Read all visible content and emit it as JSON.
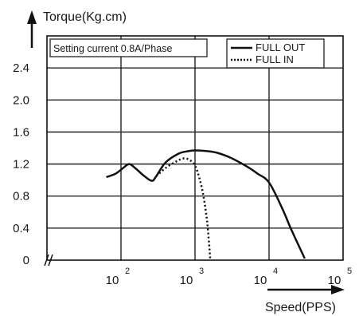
{
  "chart_data": {
    "type": "line",
    "ylabel": "Torque(Kg.cm)",
    "xlabel": "Speed(PPS)",
    "x_scale": "log",
    "xlim": [
      10,
      100000
    ],
    "ylim": [
      0,
      2.8
    ],
    "grid": true,
    "yticks": [
      "0",
      "0.4",
      "0.8",
      "1.2",
      "1.6",
      "2.0",
      "2.4"
    ],
    "xticks": [
      {
        "base": "10",
        "exp": "2"
      },
      {
        "base": "10",
        "exp": "3"
      },
      {
        "base": "10",
        "exp": "4"
      },
      {
        "base": "10",
        "exp": "5"
      }
    ],
    "annotation": "Setting current 0.8A/Phase",
    "legend_position": "top-right",
    "series": [
      {
        "name": "FULL OUT",
        "style": "solid",
        "color": "#111111",
        "x": [
          65,
          85,
          110,
          130,
          160,
          200,
          260,
          300,
          400,
          600,
          800,
          1000,
          1500,
          2000,
          3000,
          5000,
          7000,
          10000,
          15000,
          20000,
          30000
        ],
        "y": [
          1.04,
          1.08,
          1.16,
          1.2,
          1.14,
          1.06,
          0.99,
          1.05,
          1.22,
          1.33,
          1.36,
          1.37,
          1.36,
          1.34,
          1.28,
          1.17,
          1.08,
          0.97,
          0.65,
          0.38,
          0.03
        ]
      },
      {
        "name": "FULL IN",
        "style": "dotted",
        "color": "#111111",
        "x": [
          300,
          400,
          550,
          700,
          850,
          1000,
          1150,
          1300,
          1450,
          1550,
          1600
        ],
        "y": [
          1.05,
          1.15,
          1.23,
          1.27,
          1.25,
          1.18,
          1.02,
          0.8,
          0.5,
          0.2,
          0.02
        ]
      }
    ]
  }
}
